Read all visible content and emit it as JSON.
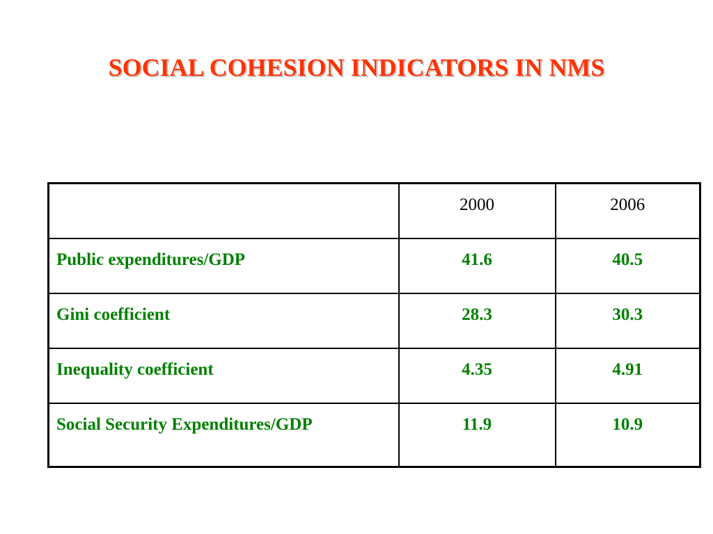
{
  "title": "SOCIAL COHESION INDICATORS IN NMS",
  "table": {
    "header": [
      "",
      "2000",
      "2006"
    ],
    "rows": [
      {
        "label": "Public expenditures/GDP",
        "v2000": "41.6",
        "v2006": "40.5"
      },
      {
        "label": "Gini coefficient",
        "v2000": "28.3",
        "v2006": "30.3"
      },
      {
        "label": "Inequality coefficient",
        "v2000": "4.35",
        "v2006": "4.91"
      },
      {
        "label": "Social Security Expenditures/GDP",
        "v2000": "11.9",
        "v2006": "10.9"
      }
    ]
  },
  "colors": {
    "title": "#ff3300",
    "data_text": "#008000",
    "header_text": "#000000",
    "border": "#000000"
  }
}
